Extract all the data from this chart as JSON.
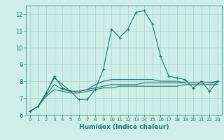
{
  "xlabel": "Humidex (Indice chaleur)",
  "x_values": [
    0,
    1,
    2,
    3,
    4,
    5,
    6,
    7,
    8,
    9,
    10,
    11,
    12,
    13,
    14,
    15,
    16,
    17,
    18,
    19,
    20,
    21,
    22,
    23
  ],
  "main_line": [
    6.2,
    6.5,
    7.3,
    8.3,
    7.6,
    7.4,
    6.9,
    6.9,
    7.5,
    8.7,
    11.1,
    10.6,
    11.1,
    12.1,
    12.2,
    11.4,
    9.5,
    8.3,
    8.2,
    8.1,
    7.6,
    8.0,
    7.4,
    8.0
  ],
  "line2": [
    6.2,
    6.5,
    7.3,
    8.2,
    7.8,
    7.4,
    7.4,
    7.5,
    7.8,
    8.0,
    8.1,
    8.1,
    8.1,
    8.1,
    8.1,
    8.1,
    8.0,
    8.0,
    8.0,
    7.9,
    7.9,
    7.9,
    7.9,
    8.0
  ],
  "line3": [
    6.2,
    6.5,
    7.2,
    7.8,
    7.5,
    7.4,
    7.4,
    7.5,
    7.6,
    7.7,
    7.8,
    7.8,
    7.8,
    7.8,
    7.9,
    7.9,
    7.9,
    7.9,
    7.9,
    7.9,
    7.9,
    7.9,
    7.9,
    7.9
  ],
  "line4": [
    6.2,
    6.5,
    7.1,
    7.5,
    7.4,
    7.3,
    7.3,
    7.4,
    7.5,
    7.6,
    7.6,
    7.7,
    7.7,
    7.7,
    7.7,
    7.7,
    7.7,
    7.7,
    7.7,
    7.8,
    7.8,
    7.8,
    7.8,
    7.8
  ],
  "line_color": "#1a7a6e",
  "bg_color": "#ceeee8",
  "grid_color": "#aed4ce",
  "ylim": [
    6,
    12.5
  ],
  "yticks": [
    6,
    7,
    8,
    9,
    10,
    11,
    12
  ],
  "marker": "+"
}
